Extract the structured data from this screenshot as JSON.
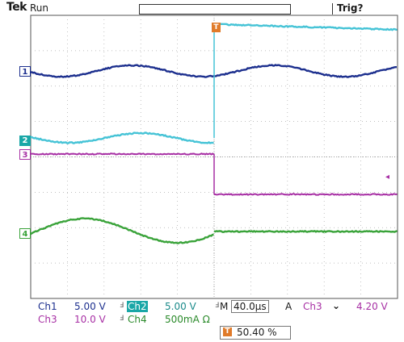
{
  "header": {
    "brand": "Tek",
    "status": "Run",
    "trigger_state": "Trig?"
  },
  "markers": {
    "ch1": "1",
    "ch2": "2",
    "ch3": "3",
    "ch4": "4",
    "trigger_position": "T",
    "trigger_level": "◂"
  },
  "readouts": {
    "ch1_label": "Ch1",
    "ch1_scale": "5.00 V",
    "ch2_label": "Ch2",
    "ch2_scale": "5.00 V",
    "ch3_label": "Ch3",
    "ch3_scale": "10.0 V",
    "ch4_label": "Ch4",
    "ch4_scale": "500mA Ω",
    "timebase_label": "M",
    "timebase": "40.0µs",
    "trigger_mode": "A",
    "trigger_source": "Ch3",
    "trigger_slope": "⌄",
    "trigger_level": "4.20 V",
    "trigger_offset_icon": "T",
    "trigger_offset": "50.40 %"
  },
  "colors": {
    "ch1": "#1c2f8e",
    "ch2": "#45c3d6",
    "ch3": "#a72fa4",
    "ch4": "#3aa33a",
    "trigger": "#e07b2a"
  }
}
